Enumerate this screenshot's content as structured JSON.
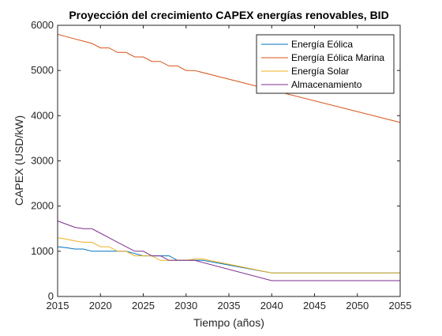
{
  "chart_data": {
    "type": "line",
    "title": "Proyección del crecimiento CAPEX energías renovables, BID",
    "xlabel": "Tiempo (años)",
    "ylabel": "CAPEX (USD/kW)",
    "xlim": [
      2015,
      2055
    ],
    "ylim": [
      0,
      6000
    ],
    "xticks": [
      2015,
      2020,
      2025,
      2030,
      2035,
      2040,
      2045,
      2050,
      2055
    ],
    "yticks": [
      0,
      1000,
      2000,
      3000,
      4000,
      5000,
      6000
    ],
    "grid": false,
    "legend_position": "top-right",
    "series": [
      {
        "name": "Energía Eólica",
        "color": "#0072BD",
        "x": [
          2015,
          2016,
          2017,
          2018,
          2019,
          2020,
          2021,
          2022,
          2023,
          2024,
          2025,
          2026,
          2027,
          2028,
          2029,
          2030,
          2031,
          2032,
          2040,
          2055
        ],
        "y": [
          1100,
          1080,
          1050,
          1050,
          1000,
          1000,
          1000,
          1000,
          1000,
          950,
          900,
          900,
          900,
          900,
          800,
          800,
          800,
          800,
          520,
          520
        ]
      },
      {
        "name": "Energía Eólica Marina",
        "color": "#D95319",
        "x": [
          2015,
          2016,
          2017,
          2018,
          2019,
          2020,
          2021,
          2022,
          2023,
          2024,
          2025,
          2026,
          2027,
          2028,
          2029,
          2030,
          2031,
          2055
        ],
        "y": [
          5800,
          5750,
          5700,
          5650,
          5600,
          5500,
          5500,
          5400,
          5400,
          5300,
          5300,
          5200,
          5200,
          5100,
          5100,
          5000,
          5000,
          3850
        ]
      },
      {
        "name": "Energía Solar",
        "color": "#EDB120",
        "x": [
          2015,
          2016,
          2017,
          2018,
          2019,
          2020,
          2021,
          2022,
          2023,
          2024,
          2025,
          2026,
          2027,
          2028,
          2029,
          2030,
          2031,
          2032,
          2040,
          2055
        ],
        "y": [
          1300,
          1270,
          1230,
          1200,
          1200,
          1100,
          1100,
          1000,
          1000,
          900,
          900,
          900,
          800,
          800,
          800,
          800,
          830,
          830,
          520,
          520
        ]
      },
      {
        "name": "Almacenamiento",
        "color": "#7E2F8E",
        "x": [
          2015,
          2016,
          2017,
          2018,
          2019,
          2020,
          2021,
          2022,
          2023,
          2024,
          2025,
          2026,
          2027,
          2028,
          2029,
          2030,
          2031,
          2040,
          2055
        ],
        "y": [
          1670,
          1600,
          1530,
          1500,
          1500,
          1400,
          1300,
          1200,
          1100,
          1000,
          1000,
          900,
          900,
          800,
          800,
          800,
          800,
          350,
          350
        ]
      }
    ]
  }
}
